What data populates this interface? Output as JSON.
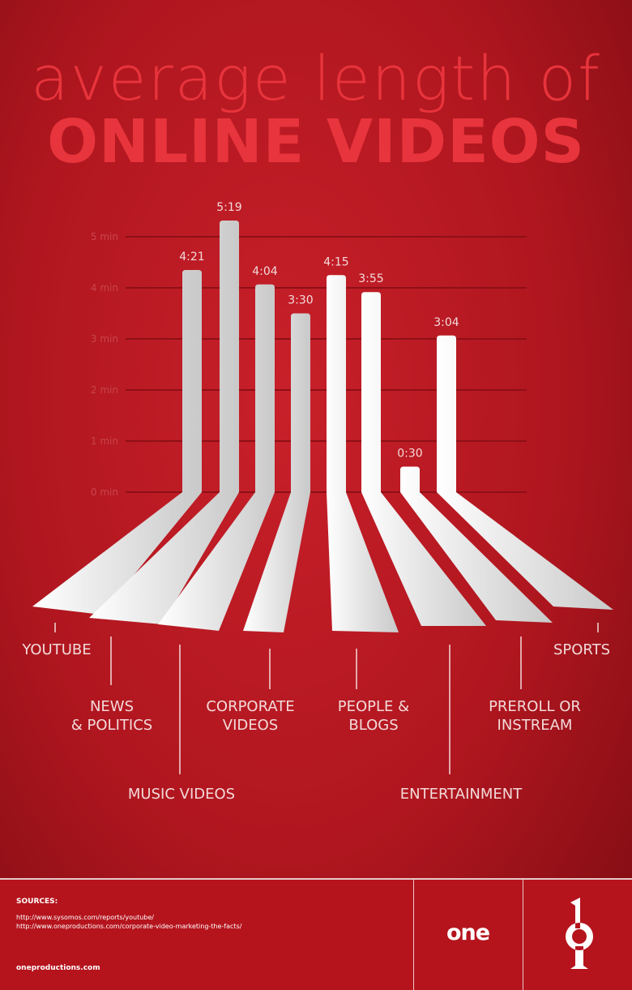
{
  "chart_data": {
    "type": "bar",
    "title": "average length of",
    "subtitle": "ONLINE VIDEOS",
    "categories": [
      "YOUTUBE",
      "NEWS\n& POLITICS",
      "MUSIC VIDEOS",
      "CORPORATE\nVIDEOS",
      "PEOPLE &\nBLOGS",
      "ENTERTAINMENT",
      "PREROLL OR\nINSTREAM",
      "SPORTS"
    ],
    "values": [
      4.35,
      5.3167,
      4.0667,
      3.5,
      4.25,
      3.9167,
      0.5,
      3.0667
    ],
    "value_labels": [
      "4:21",
      "5:19",
      "4:04",
      "3:30",
      "4:15",
      "3:55",
      "0:30",
      "3:04"
    ],
    "color": "#f2f2f2",
    "ylim": [
      0,
      5
    ],
    "yticks": [
      {
        "value": 0,
        "label": "0 min"
      },
      {
        "value": 1,
        "label": "1 min"
      },
      {
        "value": 2,
        "label": "2 min"
      },
      {
        "value": 3,
        "label": "3 min"
      },
      {
        "value": 4,
        "label": "4 min"
      },
      {
        "value": 5,
        "label": "5 min"
      }
    ],
    "grid": true
  },
  "footer": {
    "sources_heading": "SOURCES:",
    "sources": [
      "http://www.sysomos.com/reports/youtube/",
      "http://www.oneproductions.com/corporate-video-marketing-the-facts/"
    ],
    "site": "oneproductions.com",
    "logo": "one"
  }
}
